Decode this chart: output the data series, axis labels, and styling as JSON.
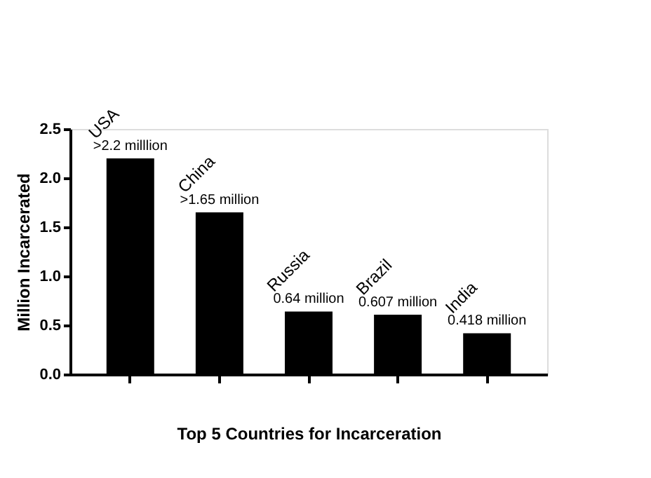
{
  "chart_data": {
    "type": "bar",
    "xlabel": "Top 5 Countries for  Incarceration",
    "ylabel": "Million Incarcerated",
    "categories": [
      "USA",
      "China",
      "Russia",
      "Brazil",
      "India"
    ],
    "values": [
      2.2,
      1.65,
      0.64,
      0.607,
      0.418
    ],
    "value_labels": [
      ">2.2 milllion",
      ">1.65 million",
      "0.64 million",
      "0.607 million",
      "0.418 million"
    ],
    "color": "#000000",
    "ylim": [
      0,
      2.5
    ],
    "yticks": [
      {
        "value": 0,
        "label": "0.0"
      },
      0.5,
      {
        "value": 1,
        "label": "1.0"
      },
      1.5,
      {
        "value": 2,
        "label": "2.0"
      },
      2.5
    ],
    "tick_labels": "y",
    "grid": false
  }
}
